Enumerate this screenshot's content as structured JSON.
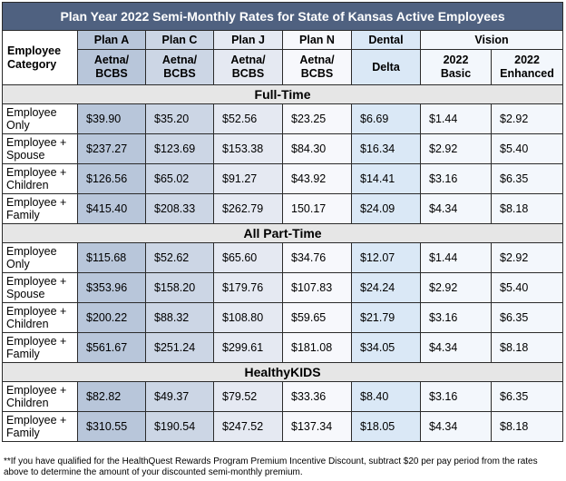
{
  "title": "Plan Year 2022 Semi-Monthly Rates for State of Kansas Active Employees",
  "headers": {
    "category_line1": "Employee",
    "category_line2": "Category",
    "plan_a": "Plan A",
    "plan_c": "Plan C",
    "plan_j": "Plan J",
    "plan_n": "Plan N",
    "dental": "Dental",
    "vision": "Vision",
    "carrier_aetna_l1": "Aetna/",
    "carrier_aetna_l2": "BCBS",
    "carrier_delta": "Delta",
    "vision_basic_l1": "2022",
    "vision_basic_l2": "Basic",
    "vision_enh_l1": "2022",
    "vision_enh_l2": "Enhanced"
  },
  "sections": [
    {
      "name": "Full-Time",
      "rows": [
        {
          "cat1": "Employee",
          "cat2": "Only",
          "values": [
            "$39.90",
            "$35.20",
            "$52.56",
            "$23.25",
            "$6.69",
            "$1.44",
            "$2.92"
          ]
        },
        {
          "cat1": "Employee +",
          "cat2": "Spouse",
          "values": [
            "$237.27",
            "$123.69",
            "$153.38",
            "$84.30",
            "$16.34",
            "$2.92",
            "$5.40"
          ]
        },
        {
          "cat1": "Employee +",
          "cat2": "Children",
          "values": [
            "$126.56",
            "$65.02",
            "$91.27",
            "$43.92",
            "$14.41",
            "$3.16",
            "$6.35"
          ]
        },
        {
          "cat1": "Employee +",
          "cat2": "Family",
          "values": [
            "$415.40",
            "$208.33",
            "$262.79",
            "150.17",
            "$24.09",
            "$4.34",
            "$8.18"
          ]
        }
      ]
    },
    {
      "name": "All Part-Time",
      "rows": [
        {
          "cat1": "Employee",
          "cat2": "Only",
          "values": [
            "$115.68",
            "$52.62",
            "$65.60",
            "$34.76",
            "$12.07",
            "$1.44",
            "$2.92"
          ]
        },
        {
          "cat1": "Employee +",
          "cat2": "Spouse",
          "values": [
            "$353.96",
            "$158.20",
            "$179.76",
            "$107.83",
            "$24.24",
            "$2.92",
            "$5.40"
          ]
        },
        {
          "cat1": "Employee +",
          "cat2": "Children",
          "values": [
            "$200.22",
            "$88.32",
            "$108.80",
            "$59.65",
            "$21.79",
            "$3.16",
            "$6.35"
          ]
        },
        {
          "cat1": "Employee +",
          "cat2": "Family",
          "values": [
            "$561.67",
            "$251.24",
            "$299.61",
            "$181.08",
            "$34.05",
            "$4.34",
            "$8.18"
          ]
        }
      ]
    },
    {
      "name": "HealthyKIDS",
      "rows": [
        {
          "cat1": "Employee +",
          "cat2": "Children",
          "values": [
            "$82.82",
            "$49.37",
            "$79.52",
            "$33.36",
            "$8.40",
            "$3.16",
            "$6.35"
          ]
        },
        {
          "cat1": "Employee +",
          "cat2": "Family",
          "values": [
            "$310.55",
            "$190.54",
            "$247.52",
            "$137.34",
            "$18.05",
            "$4.34",
            "$8.18"
          ]
        }
      ]
    }
  ],
  "footnote": "**If you have qualified for the HealthQuest Rewards Program Premium Incentive Discount, subtract $20 per pay period from the rates above to determine the amount of your discounted semi-monthly premium.",
  "colors": {
    "title_bg": "#4f6180",
    "plan_a": "#b8c6da",
    "plan_c": "#ccd6e5",
    "plan_j": "#e5e9f2",
    "plan_n": "#f7f8fc",
    "dental": "#dae8f6",
    "vision": "#f3f7fc",
    "section_bg": "#e6e6e6"
  }
}
